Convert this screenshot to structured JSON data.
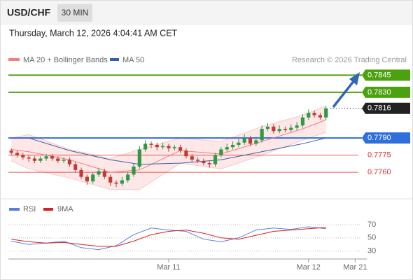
{
  "header": {
    "symbol": "USD/CHF",
    "interval": "30 MIN",
    "datetime": "Thursday, March 12, 2026 4:04:41 AM CET"
  },
  "chart_data": [
    {
      "type": "candlestick",
      "credit": "Research © 2026 Trading Central",
      "up_color": "#2e9a46",
      "down_color": "#c23b32",
      "xlim": [
        -0.5,
        61
      ],
      "ylim": [
        0.7738,
        0.7871
      ],
      "open": [
        0.7779,
        0.7777,
        0.7775,
        0.7773,
        0.7772,
        0.777,
        0.7772,
        0.7774,
        0.7772,
        0.777,
        0.7771,
        0.7767,
        0.7762,
        0.7756,
        0.7752,
        0.7758,
        0.7761,
        0.7756,
        0.7751,
        0.775,
        0.7753,
        0.7758,
        0.7765,
        0.778,
        0.7785,
        0.7784,
        0.7782,
        0.7783,
        0.7781,
        0.7782,
        0.7779,
        0.7774,
        0.7771,
        0.777,
        0.7768,
        0.7767,
        0.7775,
        0.778,
        0.7782,
        0.7784,
        0.7786,
        0.779,
        0.7785,
        0.7788,
        0.7798,
        0.78,
        0.7796,
        0.7798,
        0.7797,
        0.7799,
        0.7801,
        0.7808,
        0.7812,
        0.781,
        0.7808
      ],
      "high": [
        0.7781,
        0.7779,
        0.7777,
        0.7775,
        0.7774,
        0.7774,
        0.7776,
        0.7776,
        0.7774,
        0.7773,
        0.7773,
        0.7769,
        0.7764,
        0.7758,
        0.776,
        0.7764,
        0.7763,
        0.7758,
        0.7753,
        0.7756,
        0.776,
        0.7768,
        0.7783,
        0.7788,
        0.7787,
        0.7786,
        0.7786,
        0.7785,
        0.7784,
        0.7784,
        0.7781,
        0.7776,
        0.7773,
        0.7772,
        0.777,
        0.7777,
        0.7782,
        0.7785,
        0.7787,
        0.7789,
        0.7793,
        0.7792,
        0.7791,
        0.7801,
        0.7803,
        0.7802,
        0.7801,
        0.78,
        0.7802,
        0.7804,
        0.7811,
        0.7815,
        0.7814,
        0.7812,
        0.7818
      ],
      "low": [
        0.7775,
        0.7773,
        0.7771,
        0.7769,
        0.7768,
        0.7768,
        0.777,
        0.777,
        0.7768,
        0.7768,
        0.7765,
        0.776,
        0.7754,
        0.7749,
        0.775,
        0.7756,
        0.7754,
        0.7748,
        0.7747,
        0.7748,
        0.7751,
        0.7756,
        0.7763,
        0.7778,
        0.7781,
        0.7779,
        0.778,
        0.7778,
        0.7779,
        0.7777,
        0.7772,
        0.7769,
        0.7768,
        0.7766,
        0.7764,
        0.7765,
        0.7773,
        0.7778,
        0.778,
        0.7782,
        0.7784,
        0.7783,
        0.7783,
        0.7786,
        0.7796,
        0.7794,
        0.7794,
        0.7795,
        0.7795,
        0.7797,
        0.7799,
        0.7806,
        0.7808,
        0.7806,
        0.7806
      ],
      "close": [
        0.7777,
        0.7775,
        0.7773,
        0.7772,
        0.777,
        0.7772,
        0.7774,
        0.7772,
        0.777,
        0.7771,
        0.7767,
        0.7762,
        0.7756,
        0.7752,
        0.7758,
        0.7761,
        0.7756,
        0.7751,
        0.775,
        0.7753,
        0.7758,
        0.7765,
        0.778,
        0.7785,
        0.7784,
        0.7782,
        0.7783,
        0.7781,
        0.7782,
        0.7779,
        0.7774,
        0.7771,
        0.777,
        0.7768,
        0.7767,
        0.7775,
        0.778,
        0.7782,
        0.7784,
        0.7786,
        0.779,
        0.7785,
        0.7788,
        0.7798,
        0.78,
        0.7796,
        0.7798,
        0.7797,
        0.7799,
        0.7801,
        0.7808,
        0.7812,
        0.781,
        0.7808,
        0.7816
      ],
      "series": [
        {
          "name": "MA 20 + Bollinger Bands",
          "color": "#f08080",
          "x": [
            0,
            3,
            10,
            17,
            22,
            29,
            36,
            43,
            50,
            54
          ],
          "values": [
            0.778,
            0.7778,
            0.7771,
            0.776,
            0.7762,
            0.7779,
            0.7776,
            0.7787,
            0.7798,
            0.7806
          ],
          "upper": [
            0.779,
            0.7793,
            0.778,
            0.7772,
            0.778,
            0.779,
            0.7787,
            0.78,
            0.781,
            0.7818
          ],
          "lower": [
            0.777,
            0.7763,
            0.7755,
            0.7745,
            0.7745,
            0.7768,
            0.7763,
            0.7775,
            0.7788,
            0.7795
          ]
        },
        {
          "name": "MA 50",
          "color": "#3b5ea8",
          "x": [
            0,
            3,
            10,
            17,
            22,
            29,
            36,
            43,
            50,
            54
          ],
          "values": [
            0.779,
            0.779,
            0.7779,
            0.7771,
            0.7767,
            0.7768,
            0.7771,
            0.7778,
            0.7785,
            0.779
          ]
        }
      ],
      "levels": [
        {
          "value": 0.7845,
          "label": "0.7845",
          "color": "#4ca10f",
          "boxed": true
        },
        {
          "value": 0.783,
          "label": "0.7830",
          "color": "#4ca10f",
          "boxed": true
        },
        {
          "value": 0.7816,
          "label": "0.7816",
          "color": "#222222",
          "boxed": true,
          "dotted": true
        },
        {
          "value": 0.779,
          "label": "0.7790",
          "color": "#2f6fdc",
          "boxed": true
        },
        {
          "value": 0.7775,
          "label": "0.7775",
          "color": "#e03030",
          "boxed": false
        },
        {
          "value": 0.776,
          "label": "0.7760",
          "color": "#e03030",
          "boxed": false
        }
      ]
    },
    {
      "type": "line",
      "xlim": [
        -0.5,
        61
      ],
      "ylim": [
        23,
        82
      ],
      "yticks": [
        30,
        50,
        70
      ],
      "xticks": [
        {
          "value": 27,
          "label": "Mar 11"
        },
        {
          "value": 51,
          "label": "Mar 12"
        },
        {
          "value": 59,
          "label": "Mar 21"
        }
      ],
      "series": [
        {
          "name": "RSI",
          "color": "#5b7fd6",
          "x": [
            0,
            3,
            6,
            9,
            12,
            15,
            18,
            21,
            24,
            27,
            30,
            33,
            36,
            39,
            42,
            45,
            48,
            51,
            54
          ],
          "values": [
            45,
            40,
            42,
            45,
            35,
            32,
            38,
            55,
            65,
            62,
            60,
            48,
            44,
            50,
            62,
            65,
            63,
            67,
            64
          ]
        },
        {
          "name": "9MA",
          "color": "#d92020",
          "x": [
            0,
            3,
            6,
            9,
            12,
            15,
            18,
            21,
            24,
            27,
            30,
            33,
            36,
            39,
            42,
            45,
            48,
            51,
            54
          ],
          "values": [
            48,
            44,
            42,
            43,
            40,
            37,
            37,
            45,
            55,
            60,
            62,
            57,
            50,
            48,
            54,
            60,
            62,
            64,
            66
          ]
        }
      ]
    }
  ]
}
